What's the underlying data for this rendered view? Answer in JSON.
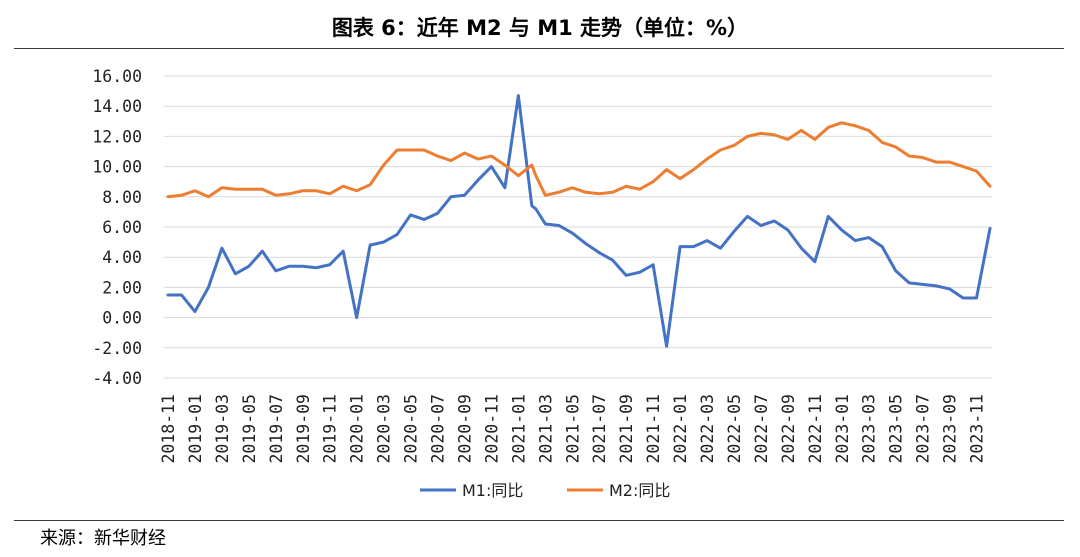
{
  "title": "图表 6：近年 M2 与 M1 走势（单位：%）",
  "source": "来源：新华财经",
  "chart_data": {
    "type": "line",
    "title": "图表 6：近年 M2 与 M1 走势（单位：%）",
    "xlabel": "",
    "ylabel": "",
    "ylim": [
      -4,
      16
    ],
    "y_ticks": [
      16,
      14,
      12,
      10,
      8,
      6,
      4,
      2,
      0,
      -2,
      -4
    ],
    "y_tick_labels": [
      "16.00",
      "14.00",
      "12.00",
      "10.00",
      "8.00",
      "6.00",
      "4.00",
      "2.00",
      "0.00",
      "-2.00",
      "-4.00"
    ],
    "x_tick_labels": [
      "2018-11",
      "2019-01",
      "2019-03",
      "2019-05",
      "2019-07",
      "2019-09",
      "2019-11",
      "2020-01",
      "2020-03",
      "2020-05",
      "2020-07",
      "2020-09",
      "2020-11",
      "2021-01",
      "2021-03",
      "2021-05",
      "2021-07",
      "2021-09",
      "2021-11",
      "2022-01",
      "2022-03",
      "2022-05",
      "2022-07",
      "2022-09",
      "2022-11",
      "2023-01",
      "2023-03",
      "2023-05",
      "2023-07",
      "2023-09",
      "2023-11"
    ],
    "grid": "horizontal",
    "legend_position": "bottom",
    "series": [
      {
        "name": "M1:同比",
        "color": "#4472C4",
        "x": [
          "2018-11",
          "2018-12",
          "2019-01",
          "2019-02",
          "2019-03",
          "2019-04",
          "2019-05",
          "2019-06",
          "2019-07",
          "2019-08",
          "2019-09",
          "2019-10",
          "2019-11",
          "2019-12",
          "2020-01",
          "2020-02",
          "2020-03",
          "2020-04",
          "2020-05",
          "2020-06",
          "2020-07",
          "2020-08",
          "2020-09",
          "2020-10",
          "2020-11",
          "2020-12",
          "2021-01",
          "2021-02",
          "2021-02",
          "2021-03",
          "2021-04",
          "2021-05",
          "2021-06",
          "2021-07",
          "2021-08",
          "2021-09",
          "2021-10",
          "2021-11",
          "2021-12",
          "2022-01",
          "2022-02",
          "2022-03",
          "2022-04",
          "2022-05",
          "2022-06",
          "2022-07",
          "2022-08",
          "2022-09",
          "2022-10",
          "2022-11",
          "2022-12",
          "2023-01",
          "2023-02",
          "2023-03",
          "2023-04",
          "2023-05",
          "2023-06",
          "2023-07",
          "2023-08",
          "2023-09",
          "2023-10",
          "2023-11",
          "2023-12"
        ],
        "values": [
          1.5,
          1.5,
          0.4,
          2.0,
          4.6,
          2.9,
          3.4,
          4.4,
          3.1,
          3.4,
          3.4,
          3.3,
          3.5,
          4.4,
          0.0,
          4.8,
          5.0,
          5.5,
          6.8,
          6.5,
          6.9,
          8.0,
          8.1,
          9.1,
          10.0,
          8.6,
          14.7,
          7.4,
          7.2,
          6.2,
          6.1,
          5.6,
          4.9,
          4.3,
          3.8,
          2.8,
          3.0,
          3.5,
          -1.9,
          4.7,
          4.7,
          5.1,
          4.6,
          5.7,
          6.7,
          6.1,
          6.4,
          5.8,
          4.6,
          3.7,
          6.7,
          5.8,
          5.1,
          5.3,
          4.7,
          3.1,
          2.3,
          2.2,
          2.1,
          1.9,
          1.3,
          1.3,
          5.9
        ]
      },
      {
        "name": "M2:同比",
        "color": "#ED7D31",
        "x": [
          "2018-11",
          "2018-12",
          "2019-01",
          "2019-02",
          "2019-03",
          "2019-04",
          "2019-05",
          "2019-06",
          "2019-07",
          "2019-08",
          "2019-09",
          "2019-10",
          "2019-11",
          "2019-12",
          "2020-01",
          "2020-02",
          "2020-03",
          "2020-04",
          "2020-05",
          "2020-06",
          "2020-07",
          "2020-08",
          "2020-09",
          "2020-10",
          "2020-11",
          "2020-12",
          "2021-01",
          "2021-02",
          "2021-02",
          "2021-03",
          "2021-04",
          "2021-05",
          "2021-06",
          "2021-07",
          "2021-08",
          "2021-09",
          "2021-10",
          "2021-11",
          "2021-12",
          "2022-01",
          "2022-02",
          "2022-03",
          "2022-04",
          "2022-05",
          "2022-06",
          "2022-07",
          "2022-08",
          "2022-09",
          "2022-10",
          "2022-11",
          "2022-12",
          "2023-01",
          "2023-02",
          "2023-03",
          "2023-04",
          "2023-05",
          "2023-06",
          "2023-07",
          "2023-08",
          "2023-09",
          "2023-10",
          "2023-11",
          "2023-12"
        ],
        "values": [
          8.0,
          8.1,
          8.4,
          8.0,
          8.6,
          8.5,
          8.5,
          8.5,
          8.1,
          8.2,
          8.4,
          8.4,
          8.2,
          8.7,
          8.4,
          8.8,
          10.1,
          11.1,
          11.1,
          11.1,
          10.7,
          10.4,
          10.9,
          10.5,
          10.7,
          10.1,
          9.4,
          10.1,
          9.4,
          8.1,
          8.3,
          8.6,
          8.3,
          8.2,
          8.3,
          8.7,
          8.5,
          9.0,
          9.8,
          9.2,
          9.8,
          10.5,
          11.1,
          11.4,
          12.0,
          12.2,
          12.1,
          11.8,
          12.4,
          11.8,
          12.6,
          12.9,
          12.7,
          12.4,
          11.6,
          11.3,
          10.7,
          10.6,
          10.3,
          10.3,
          10.0,
          9.7,
          8.7
        ]
      }
    ]
  }
}
